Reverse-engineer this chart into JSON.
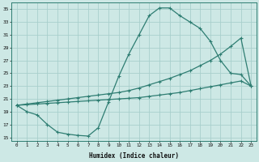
{
  "xlabel": "Humidex (Indice chaleur)",
  "bg_color": "#cde8e5",
  "grid_color": "#a8cfcc",
  "line_color": "#2e7d72",
  "xlim": [
    -0.5,
    23.5
  ],
  "ylim": [
    14.5,
    36.0
  ],
  "yticks": [
    15,
    17,
    19,
    21,
    23,
    25,
    27,
    29,
    31,
    33,
    35
  ],
  "xticks": [
    0,
    1,
    2,
    3,
    4,
    5,
    6,
    7,
    8,
    9,
    10,
    11,
    12,
    13,
    14,
    15,
    16,
    17,
    18,
    19,
    20,
    21,
    22,
    23
  ],
  "line1_x": [
    0,
    1,
    2,
    3,
    4,
    5,
    6,
    7,
    8,
    9,
    10,
    11,
    12,
    13,
    14,
    15,
    16,
    17,
    18,
    19,
    20,
    21,
    22,
    23
  ],
  "line1_y": [
    20,
    19,
    18.5,
    17,
    15.8,
    15.5,
    15.3,
    15.2,
    16.5,
    20.5,
    24.5,
    28,
    31,
    34,
    35.2,
    35.2,
    34,
    33,
    32,
    30,
    27,
    25,
    24.8,
    23
  ],
  "line2_x": [
    0,
    1,
    2,
    3,
    4,
    5,
    6,
    7,
    8,
    9,
    10,
    11,
    12,
    13,
    14,
    15,
    16,
    17,
    18,
    19,
    20,
    21,
    22,
    23
  ],
  "line2_y": [
    20,
    20.2,
    20.4,
    20.6,
    20.8,
    21.0,
    21.2,
    21.4,
    21.6,
    21.8,
    22.0,
    22.3,
    22.7,
    23.2,
    23.7,
    24.2,
    24.8,
    25.4,
    26.2,
    27.0,
    28.0,
    29.2,
    30.5,
    23.0
  ],
  "line3_x": [
    0,
    1,
    2,
    3,
    4,
    5,
    6,
    7,
    8,
    9,
    10,
    11,
    12,
    13,
    14,
    15,
    16,
    17,
    18,
    19,
    20,
    21,
    22,
    23
  ],
  "line3_y": [
    20,
    20.1,
    20.2,
    20.3,
    20.4,
    20.5,
    20.6,
    20.7,
    20.8,
    20.9,
    21.0,
    21.1,
    21.2,
    21.4,
    21.6,
    21.8,
    22.0,
    22.3,
    22.6,
    22.9,
    23.2,
    23.5,
    23.8,
    23.0
  ]
}
